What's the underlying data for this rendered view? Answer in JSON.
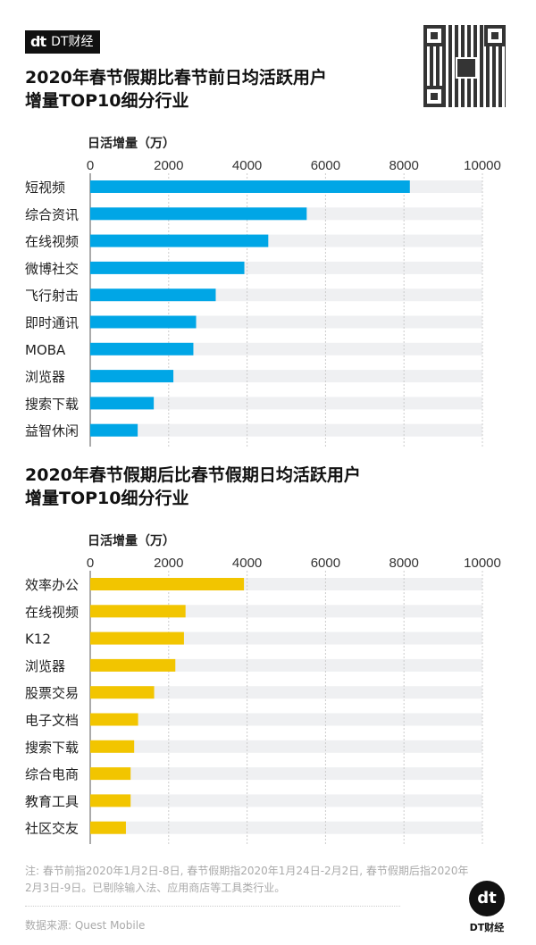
{
  "header": {
    "logo_text": "DT财经"
  },
  "charts_meta": [
    {
      "title_line1": "2020年春节假期比春节前日均活跃用户",
      "title_line2": "增量TOP10细分行业",
      "unit": "日活增量（万）"
    },
    {
      "title_line1": "2020年春节假期后比春节假期日均活跃用户",
      "title_line2": "增量TOP10细分行业",
      "unit": "日活增量（万）"
    }
  ],
  "chart_data": [
    {
      "type": "bar",
      "orientation": "horizontal",
      "title": "2020年春节假期比春节前日均活跃用户增量TOP10细分行业",
      "xlabel": "日活增量（万）",
      "xlim": [
        0,
        10000
      ],
      "xticks": [
        "0",
        "2000",
        "4000",
        "6000",
        "8000",
        "10000"
      ],
      "grid": true,
      "color": "#00a6e6",
      "categories": [
        "短视频",
        "综合资讯",
        "在线视频",
        "微博社交",
        "飞行射击",
        "即时通讯",
        "MOBA",
        "浏览器",
        "搜索下载",
        "益智休闲"
      ],
      "values": [
        8150,
        5520,
        4540,
        3930,
        3200,
        2700,
        2630,
        2120,
        1620,
        1210
      ]
    },
    {
      "type": "bar",
      "orientation": "horizontal",
      "title": "2020年春节假期后比春节假期日均活跃用户增量TOP10细分行业",
      "xlabel": "日活增量（万）",
      "xlim": [
        0,
        10000
      ],
      "xticks": [
        "0",
        "2000",
        "4000",
        "6000",
        "8000",
        "10000"
      ],
      "grid": true,
      "color": "#f2c500",
      "categories": [
        "效率办公",
        "在线视频",
        "K12",
        "浏览器",
        "股票交易",
        "电子文档",
        "搜索下载",
        "综合电商",
        "教育工具",
        "社区交友"
      ],
      "values": [
        3920,
        2430,
        2390,
        2170,
        1630,
        1220,
        1120,
        1030,
        1030,
        910
      ]
    }
  ],
  "footer": {
    "note": "注: 春节前指2020年1月2日-8日, 春节假期指2020年1月24日-2月2日, 春节假期后指2020年2月3日-9日。已剔除输入法、应用商店等工具类行业。",
    "source": "数据来源: Quest Mobile",
    "brand": "DT财经",
    "brand_mark": "dt"
  }
}
